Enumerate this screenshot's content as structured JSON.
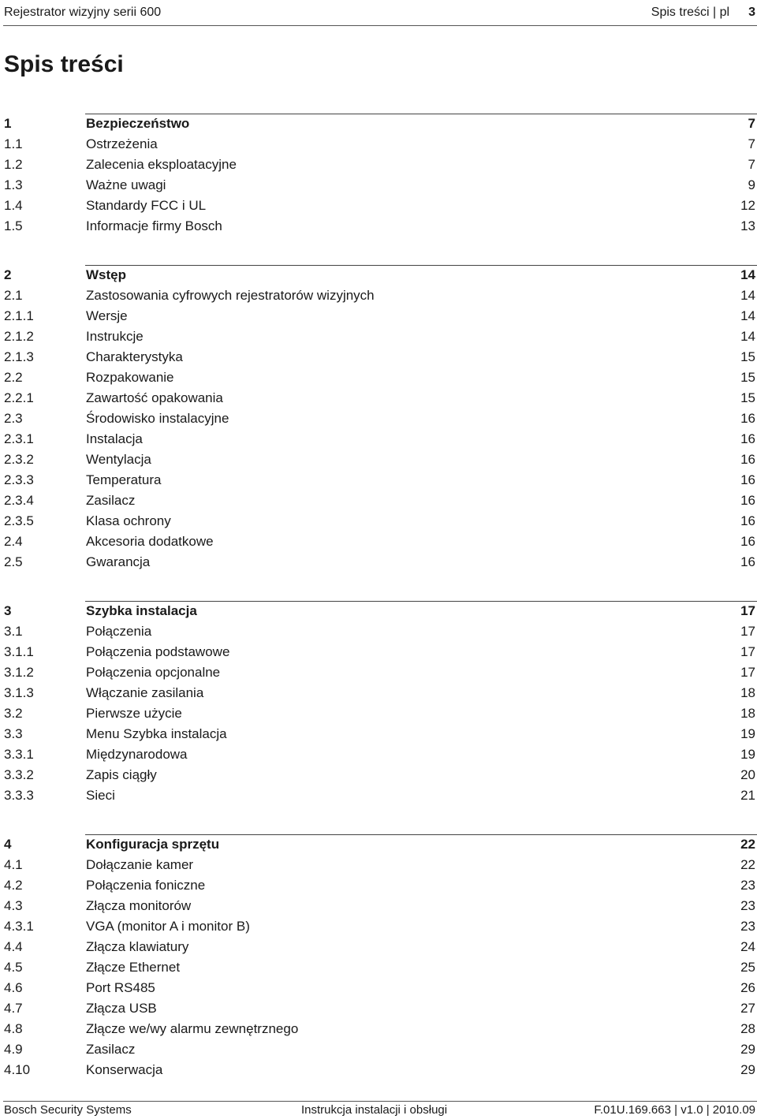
{
  "header": {
    "doc_title": "Rejestrator wizyjny serii 600",
    "section_label": "Spis treści | pl",
    "page_number": "3"
  },
  "page_title": "Spis treści",
  "sections": [
    {
      "num": "1",
      "title": "Bezpieczeństwo",
      "page": "7",
      "items": [
        {
          "num": "1.1",
          "title": "Ostrzeżenia",
          "page": "7"
        },
        {
          "num": "1.2",
          "title": "Zalecenia eksploatacyjne",
          "page": "7"
        },
        {
          "num": "1.3",
          "title": "Ważne uwagi",
          "page": "9"
        },
        {
          "num": "1.4",
          "title": "Standardy FCC i UL",
          "page": "12"
        },
        {
          "num": "1.5",
          "title": "Informacje firmy Bosch",
          "page": "13"
        }
      ]
    },
    {
      "num": "2",
      "title": "Wstęp",
      "page": "14",
      "items": [
        {
          "num": "2.1",
          "title": "Zastosowania cyfrowych rejestratorów wizyjnych",
          "page": "14"
        },
        {
          "num": "2.1.1",
          "title": "Wersje",
          "page": "14"
        },
        {
          "num": "2.1.2",
          "title": "Instrukcje",
          "page": "14"
        },
        {
          "num": "2.1.3",
          "title": "Charakterystyka",
          "page": "15"
        },
        {
          "num": "2.2",
          "title": "Rozpakowanie",
          "page": "15"
        },
        {
          "num": "2.2.1",
          "title": "Zawartość opakowania",
          "page": "15"
        },
        {
          "num": "2.3",
          "title": "Środowisko instalacyjne",
          "page": "16"
        },
        {
          "num": "2.3.1",
          "title": "Instalacja",
          "page": "16"
        },
        {
          "num": "2.3.2",
          "title": "Wentylacja",
          "page": "16"
        },
        {
          "num": "2.3.3",
          "title": "Temperatura",
          "page": "16"
        },
        {
          "num": "2.3.4",
          "title": "Zasilacz",
          "page": "16"
        },
        {
          "num": "2.3.5",
          "title": "Klasa ochrony",
          "page": "16"
        },
        {
          "num": "2.4",
          "title": "Akcesoria dodatkowe",
          "page": "16"
        },
        {
          "num": "2.5",
          "title": "Gwarancja",
          "page": "16"
        }
      ]
    },
    {
      "num": "3",
      "title": "Szybka instalacja",
      "page": "17",
      "items": [
        {
          "num": "3.1",
          "title": "Połączenia",
          "page": "17"
        },
        {
          "num": "3.1.1",
          "title": "Połączenia podstawowe",
          "page": "17"
        },
        {
          "num": "3.1.2",
          "title": "Połączenia opcjonalne",
          "page": "17"
        },
        {
          "num": "3.1.3",
          "title": "Włączanie zasilania",
          "page": "18"
        },
        {
          "num": "3.2",
          "title": "Pierwsze użycie",
          "page": "18"
        },
        {
          "num": "3.3",
          "title": "Menu Szybka instalacja",
          "page": "19"
        },
        {
          "num": "3.3.1",
          "title": "Międzynarodowa",
          "page": "19"
        },
        {
          "num": "3.3.2",
          "title": "Zapis ciągły",
          "page": "20"
        },
        {
          "num": "3.3.3",
          "title": "Sieci",
          "page": "21"
        }
      ]
    },
    {
      "num": "4",
      "title": "Konfiguracja sprzętu",
      "page": "22",
      "items": [
        {
          "num": "4.1",
          "title": "Dołączanie kamer",
          "page": "22"
        },
        {
          "num": "4.2",
          "title": "Połączenia foniczne",
          "page": "23"
        },
        {
          "num": "4.3",
          "title": "Złącza monitorów",
          "page": "23"
        },
        {
          "num": "4.3.1",
          "title": "VGA (monitor A i monitor B)",
          "page": "23"
        },
        {
          "num": "4.4",
          "title": "Złącza klawiatury",
          "page": "24"
        },
        {
          "num": "4.5",
          "title": "Złącze Ethernet",
          "page": "25"
        },
        {
          "num": "4.6",
          "title": "Port RS485",
          "page": "26"
        },
        {
          "num": "4.7",
          "title": "Złącza USB",
          "page": "27"
        },
        {
          "num": "4.8",
          "title": "Złącze we/wy alarmu zewnętrznego",
          "page": "28"
        },
        {
          "num": "4.9",
          "title": "Zasilacz",
          "page": "29"
        },
        {
          "num": "4.10",
          "title": "Konserwacja",
          "page": "29"
        }
      ]
    }
  ],
  "footer": {
    "company": "Bosch Security Systems",
    "doc_type": "Instrukcja instalacji i obsługi",
    "doc_code": "F.01U.169.663 | v1.0 | 2010.09"
  }
}
